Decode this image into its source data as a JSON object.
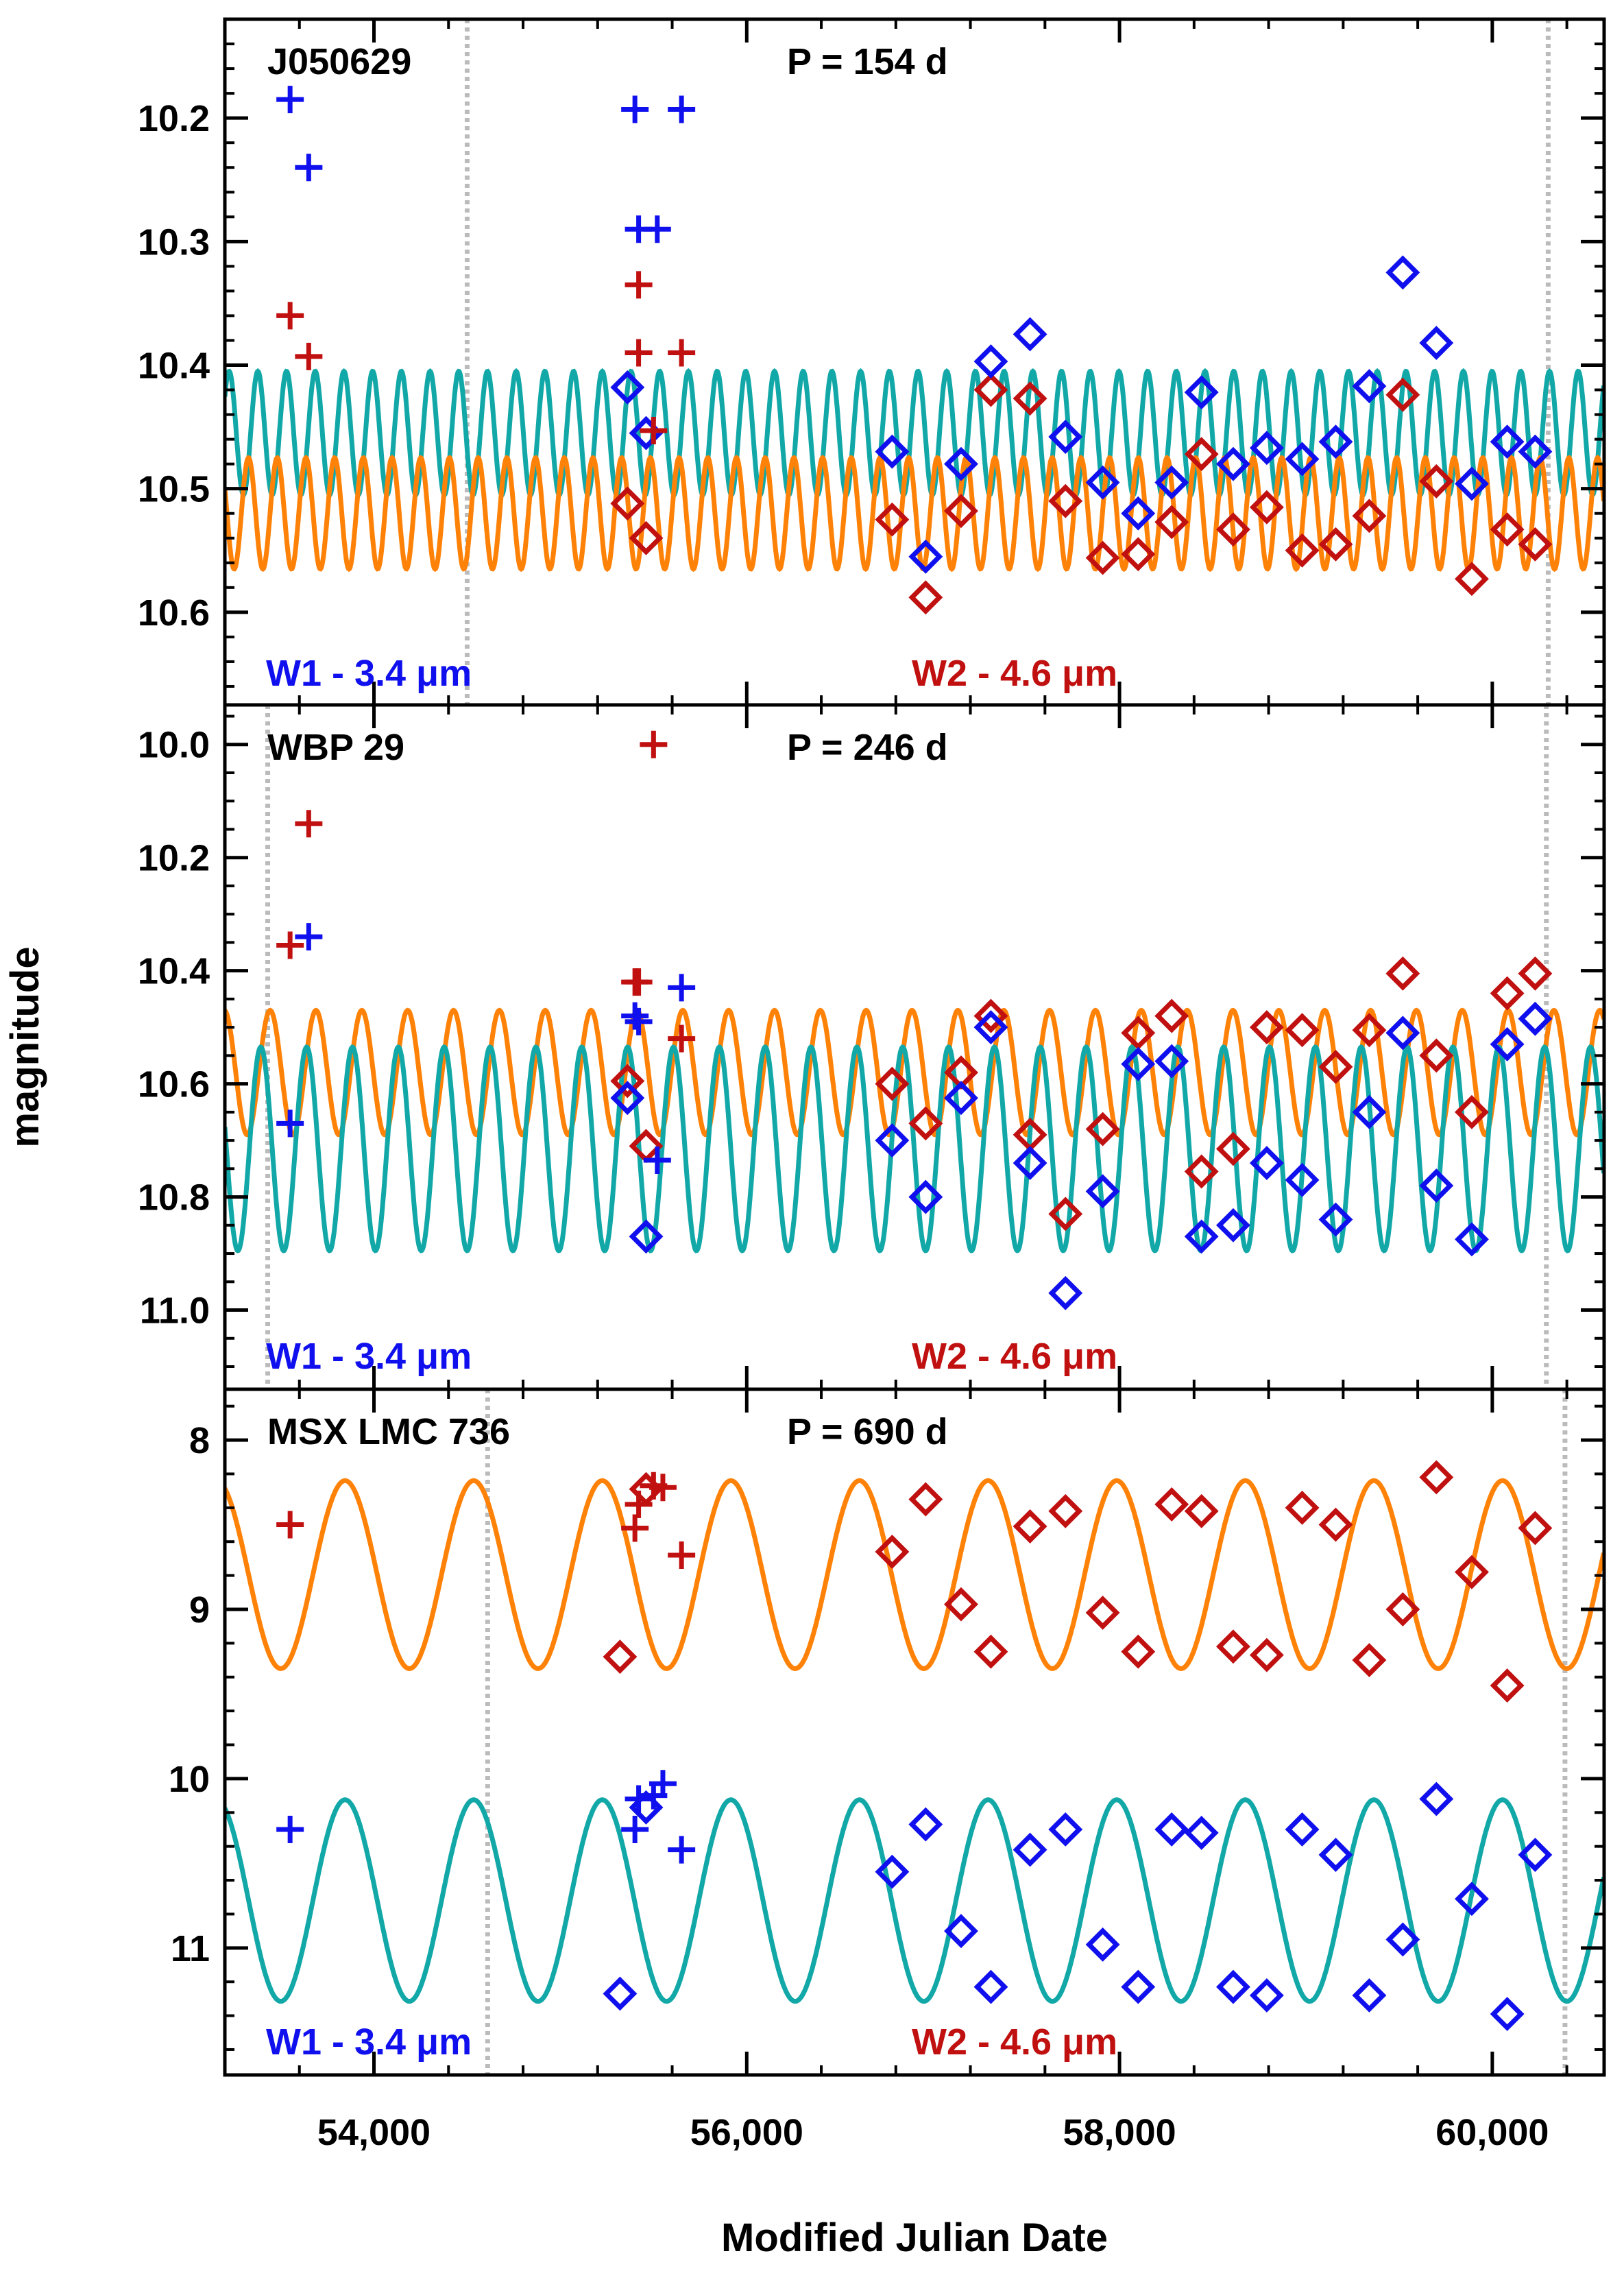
{
  "figure": {
    "xlabel": "Modified Julian Date",
    "ylabel": "magnitude",
    "xlim": [
      53200,
      60600
    ],
    "xticks": [
      54000,
      56000,
      58000,
      60000
    ],
    "xtick_labels": [
      "54,000",
      "56,000",
      "58,000",
      "60,000"
    ],
    "xminor_step": 400
  },
  "colors": {
    "w1_points": "#1010ee",
    "w2_points": "#c01010",
    "w1_model": "#13a8a8",
    "w2_model": "#ff8208",
    "epoch_line": "#bbbbbb",
    "axes": "#000000"
  },
  "chart_data": [
    {
      "type": "scatter",
      "name": "J050629",
      "title": "J050629",
      "period_label": "P = 154 d",
      "period_days": 154,
      "ylim": [
        10.675,
        10.12
      ],
      "yticks": [
        10.2,
        10.3,
        10.4,
        10.5,
        10.6
      ],
      "ytick_labels": [
        "10.2",
        "10.3",
        "10.4",
        "10.5",
        "10.6"
      ],
      "yminor_step": 0.02,
      "band_labels": {
        "w1": "W1 - 3.4 μm",
        "w2": "W2 - 4.6 μm"
      },
      "epoch_lines": [
        54500,
        60300
      ],
      "model_w1": {
        "mean": 10.455,
        "amp": 0.05,
        "period": 154,
        "phase_mjd": 53300
      },
      "model_w2": {
        "mean": 10.52,
        "amp": 0.045,
        "period": 154,
        "phase_mjd": 53250
      },
      "w1_plus": [
        [
          53550,
          10.185
        ],
        [
          53650,
          10.24
        ],
        [
          55400,
          10.193
        ],
        [
          55650,
          10.193
        ],
        [
          55420,
          10.29
        ],
        [
          55520,
          10.29
        ]
      ],
      "w2_plus": [
        [
          53550,
          10.36
        ],
        [
          53650,
          10.393
        ],
        [
          55420,
          10.335
        ],
        [
          55420,
          10.39
        ],
        [
          55500,
          10.453
        ],
        [
          55650,
          10.39
        ]
      ],
      "w1_diamond": [
        [
          55360,
          10.418
        ],
        [
          55460,
          10.455
        ],
        [
          56780,
          10.47
        ],
        [
          56960,
          10.555
        ],
        [
          57150,
          10.48
        ],
        [
          57310,
          10.397
        ],
        [
          57520,
          10.375
        ],
        [
          57710,
          10.458
        ],
        [
          57910,
          10.495
        ],
        [
          58100,
          10.52
        ],
        [
          58280,
          10.495
        ],
        [
          58440,
          10.422
        ],
        [
          58610,
          10.48
        ],
        [
          58790,
          10.467
        ],
        [
          58980,
          10.476
        ],
        [
          59160,
          10.462
        ],
        [
          59340,
          10.417
        ],
        [
          59520,
          10.325
        ],
        [
          59700,
          10.382
        ],
        [
          59890,
          10.496
        ],
        [
          60080,
          10.462
        ],
        [
          60230,
          10.47
        ]
      ],
      "w2_diamond": [
        [
          55360,
          10.512
        ],
        [
          55460,
          10.54
        ],
        [
          56780,
          10.525
        ],
        [
          56960,
          10.588
        ],
        [
          57150,
          10.518
        ],
        [
          57310,
          10.42
        ],
        [
          57520,
          10.427
        ],
        [
          57710,
          10.51
        ],
        [
          57910,
          10.556
        ],
        [
          58100,
          10.553
        ],
        [
          58280,
          10.527
        ],
        [
          58440,
          10.472
        ],
        [
          58610,
          10.533
        ],
        [
          58790,
          10.515
        ],
        [
          58980,
          10.55
        ],
        [
          59160,
          10.545
        ],
        [
          59340,
          10.522
        ],
        [
          59520,
          10.424
        ],
        [
          59700,
          10.494
        ],
        [
          59890,
          10.573
        ],
        [
          60080,
          10.533
        ],
        [
          60230,
          10.545
        ]
      ]
    },
    {
      "type": "scatter",
      "name": "WBP 29",
      "title": "WBP 29",
      "period_label": "P = 246 d",
      "period_days": 246,
      "ylim": [
        11.14,
        9.93
      ],
      "yticks": [
        10.0,
        10.2,
        10.4,
        10.6,
        10.8,
        11.0
      ],
      "ytick_labels": [
        "10.0",
        "10.2",
        "10.4",
        "10.6",
        "10.8",
        "11.0"
      ],
      "yminor_step": 0.05,
      "band_labels": {
        "w1": "W1 - 3.4 μm",
        "w2": "W2 - 4.6 μm"
      },
      "epoch_lines": [
        53430,
        60290
      ],
      "model_w1": {
        "mean": 10.715,
        "amp": 0.18,
        "period": 246,
        "phase_mjd": 53270
      },
      "model_w2": {
        "mean": 10.58,
        "amp": 0.11,
        "period": 246,
        "phase_mjd": 53320
      },
      "w1_plus": [
        [
          53550,
          10.67
        ],
        [
          53650,
          10.34
        ],
        [
          55400,
          10.48
        ],
        [
          55420,
          10.49
        ],
        [
          55520,
          10.735
        ],
        [
          55650,
          10.43
        ]
      ],
      "w2_plus": [
        [
          53550,
          10.355
        ],
        [
          53650,
          10.14
        ],
        [
          55400,
          10.42
        ],
        [
          55420,
          10.42
        ],
        [
          55500,
          10.0
        ],
        [
          55650,
          10.52
        ]
      ],
      "w1_diamond": [
        [
          55360,
          10.625
        ],
        [
          55460,
          10.87
        ],
        [
          56780,
          10.7
        ],
        [
          56960,
          10.8
        ],
        [
          57150,
          10.625
        ],
        [
          57310,
          10.5
        ],
        [
          57520,
          10.74
        ],
        [
          57710,
          10.97
        ],
        [
          57910,
          10.79
        ],
        [
          58100,
          10.565
        ],
        [
          58280,
          10.56
        ],
        [
          58440,
          10.87
        ],
        [
          58610,
          10.85
        ],
        [
          58790,
          10.74
        ],
        [
          58980,
          10.77
        ],
        [
          59160,
          10.84
        ],
        [
          59340,
          10.65
        ],
        [
          59520,
          10.51
        ],
        [
          59700,
          10.78
        ],
        [
          59890,
          10.875
        ],
        [
          60080,
          10.53
        ],
        [
          60230,
          10.485
        ]
      ],
      "w2_diamond": [
        [
          55360,
          10.595
        ],
        [
          55460,
          10.71
        ],
        [
          56780,
          10.6
        ],
        [
          56960,
          10.67
        ],
        [
          57150,
          10.58
        ],
        [
          57310,
          10.48
        ],
        [
          57520,
          10.69
        ],
        [
          57710,
          10.83
        ],
        [
          57910,
          10.68
        ],
        [
          58100,
          10.51
        ],
        [
          58280,
          10.48
        ],
        [
          58440,
          10.755
        ],
        [
          58610,
          10.715
        ],
        [
          58790,
          10.5
        ],
        [
          58980,
          10.505
        ],
        [
          59160,
          10.57
        ],
        [
          59340,
          10.505
        ],
        [
          59520,
          10.405
        ],
        [
          59700,
          10.55
        ],
        [
          59890,
          10.65
        ],
        [
          60080,
          10.44
        ],
        [
          60230,
          10.405
        ]
      ]
    },
    {
      "type": "scatter",
      "name": "MSX LMC 736",
      "title": "MSX LMC 736",
      "period_label": "P = 690 d",
      "period_days": 690,
      "ylim": [
        11.75,
        7.7
      ],
      "yticks": [
        8,
        9,
        10,
        11
      ],
      "ytick_labels": [
        "8",
        "9",
        "10",
        "11"
      ],
      "yminor_step": 0.2,
      "band_labels": {
        "w1": "W1 - 3.4 μm",
        "w2": "W2 - 4.6 μm"
      },
      "epoch_lines": [
        54610,
        60390
      ],
      "model_w1": {
        "mean": 10.72,
        "amp": 0.595,
        "period": 690,
        "phase_mjd": 53500
      },
      "model_w2": {
        "mean": 8.795,
        "amp": 0.555,
        "period": 690,
        "phase_mjd": 53500
      },
      "w1_plus": [
        [
          53550,
          10.3
        ],
        [
          55400,
          10.3
        ],
        [
          55420,
          10.12
        ],
        [
          55500,
          10.1
        ],
        [
          55550,
          10.03
        ],
        [
          55650,
          10.42
        ]
      ],
      "w2_plus": [
        [
          53550,
          8.5
        ],
        [
          55400,
          8.52
        ],
        [
          55420,
          8.38
        ],
        [
          55500,
          8.27
        ],
        [
          55550,
          8.28
        ],
        [
          55650,
          8.68
        ]
      ],
      "w1_diamond": [
        [
          55320,
          11.27
        ],
        [
          55460,
          10.17
        ],
        [
          56780,
          10.55
        ],
        [
          56960,
          10.27
        ],
        [
          57150,
          10.9
        ],
        [
          57310,
          11.23
        ],
        [
          57520,
          10.42
        ],
        [
          57710,
          10.3
        ],
        [
          57910,
          10.98
        ],
        [
          58100,
          11.23
        ],
        [
          58280,
          10.3
        ],
        [
          58440,
          10.32
        ],
        [
          58610,
          11.23
        ],
        [
          58790,
          11.28
        ],
        [
          58980,
          10.3
        ],
        [
          59160,
          10.45
        ],
        [
          59340,
          11.28
        ],
        [
          59520,
          10.95
        ],
        [
          59700,
          10.12
        ],
        [
          59890,
          10.71
        ],
        [
          60080,
          11.39
        ],
        [
          60230,
          10.45
        ]
      ],
      "w2_diamond": [
        [
          55320,
          9.28
        ],
        [
          55460,
          8.29
        ],
        [
          56780,
          8.66
        ],
        [
          56960,
          8.35
        ],
        [
          57150,
          8.97
        ],
        [
          57310,
          9.25
        ],
        [
          57520,
          8.51
        ],
        [
          57710,
          8.42
        ],
        [
          57910,
          9.02
        ],
        [
          58100,
          9.25
        ],
        [
          58280,
          8.38
        ],
        [
          58440,
          8.42
        ],
        [
          58610,
          9.22
        ],
        [
          58790,
          9.27
        ],
        [
          58980,
          8.4
        ],
        [
          59160,
          8.5
        ],
        [
          59340,
          9.3
        ],
        [
          59520,
          9.0
        ],
        [
          59700,
          8.22
        ],
        [
          59890,
          8.78
        ],
        [
          60080,
          9.45
        ],
        [
          60230,
          8.52
        ]
      ]
    }
  ]
}
